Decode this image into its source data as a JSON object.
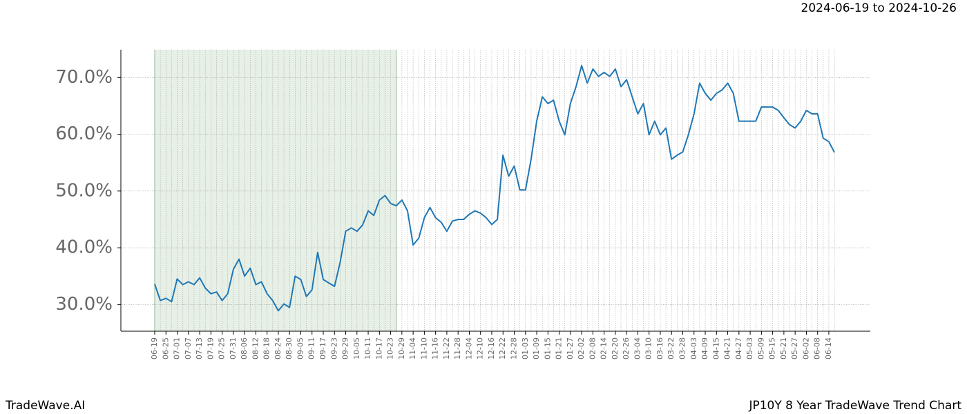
{
  "chart_data": {
    "type": "line",
    "date_range": "2024-06-19 to 2024-10-26",
    "footer_left": "TradeWave.AI",
    "footer_right": "JP10Y 8 Year TradeWave Trend Chart",
    "categories": [
      "06-19",
      null,
      "06-25",
      null,
      "07-01",
      null,
      "07-07",
      null,
      "07-13",
      null,
      "07-19",
      null,
      "07-25",
      null,
      "07-31",
      null,
      "08-06",
      null,
      "08-12",
      null,
      "08-18",
      null,
      "08-24",
      null,
      "08-30",
      null,
      "09-05",
      null,
      "09-11",
      null,
      "09-17",
      null,
      "09-23",
      null,
      "09-29",
      null,
      "10-05",
      null,
      "10-11",
      null,
      "10-17",
      null,
      "10-23",
      null,
      "10-29",
      null,
      "11-04",
      null,
      "11-10",
      null,
      "11-16",
      null,
      "11-22",
      null,
      "11-28",
      null,
      "12-04",
      null,
      "12-10",
      null,
      "12-16",
      null,
      "12-22",
      null,
      "12-28",
      null,
      "01-03",
      null,
      "01-09",
      null,
      "01-15",
      null,
      "01-21",
      null,
      "01-27",
      null,
      "02-02",
      null,
      "02-08",
      null,
      "02-14",
      null,
      "02-20",
      null,
      "02-26",
      null,
      "03-04",
      null,
      "03-10",
      null,
      "03-16",
      null,
      "03-22",
      null,
      "03-28",
      null,
      "04-03",
      null,
      "04-09",
      null,
      "04-15",
      null,
      "04-21",
      null,
      "04-27",
      null,
      "05-03",
      null,
      "05-09",
      null,
      "05-15",
      null,
      "05-21",
      null,
      "05-27",
      null,
      "06-02",
      null,
      "06-08",
      null,
      "06-14",
      null
    ],
    "values": [
      33.6,
      30.7,
      31.1,
      30.5,
      34.5,
      33.5,
      34.0,
      33.5,
      34.7,
      32.9,
      31.9,
      32.2,
      30.7,
      31.9,
      36.2,
      38.0,
      35.0,
      36.4,
      33.5,
      34.0,
      31.9,
      30.7,
      28.9,
      30.1,
      29.5,
      35.0,
      34.4,
      31.4,
      32.6,
      39.2,
      34.4,
      33.8,
      33.2,
      37.4,
      42.9,
      43.5,
      42.9,
      44.0,
      46.5,
      45.7,
      48.4,
      49.2,
      47.8,
      47.4,
      48.4,
      46.5,
      40.5,
      41.7,
      45.3,
      47.1,
      45.3,
      44.5,
      42.9,
      44.7,
      45.0,
      45.0,
      45.9,
      46.5,
      46.1,
      45.3,
      44.1,
      45.0,
      56.3,
      52.6,
      54.4,
      50.2,
      50.2,
      55.6,
      62.3,
      66.6,
      65.4,
      66.0,
      62.3,
      59.9,
      65.4,
      68.4,
      72.1,
      69.0,
      71.5,
      70.2,
      70.9,
      70.2,
      71.5,
      68.4,
      69.6,
      66.6,
      63.6,
      65.4,
      59.9,
      62.3,
      59.9,
      61.1,
      55.6,
      56.3,
      56.9,
      59.9,
      63.6,
      69.0,
      67.2,
      66.0,
      67.2,
      67.8,
      69.0,
      67.2,
      62.3,
      62.3,
      62.3,
      62.3,
      64.8,
      64.8,
      64.8,
      64.2,
      62.9,
      61.7,
      61.1,
      62.3,
      64.2,
      63.6,
      63.6,
      59.3,
      58.7,
      56.8
    ],
    "color": "#1f77b4",
    "highlight": {
      "start": 0,
      "end": 43,
      "color": "#e6f0e6"
    },
    "ylim": [
      25.3,
      74.9
    ],
    "yticks": [
      {
        "value": 30,
        "label": "30.0%"
      },
      {
        "value": 40,
        "label": "40.0%"
      },
      {
        "value": 50,
        "label": "50.0%"
      },
      {
        "value": 60,
        "label": "60.0%"
      },
      {
        "value": 70,
        "label": "70.0%"
      }
    ],
    "grid": true
  }
}
